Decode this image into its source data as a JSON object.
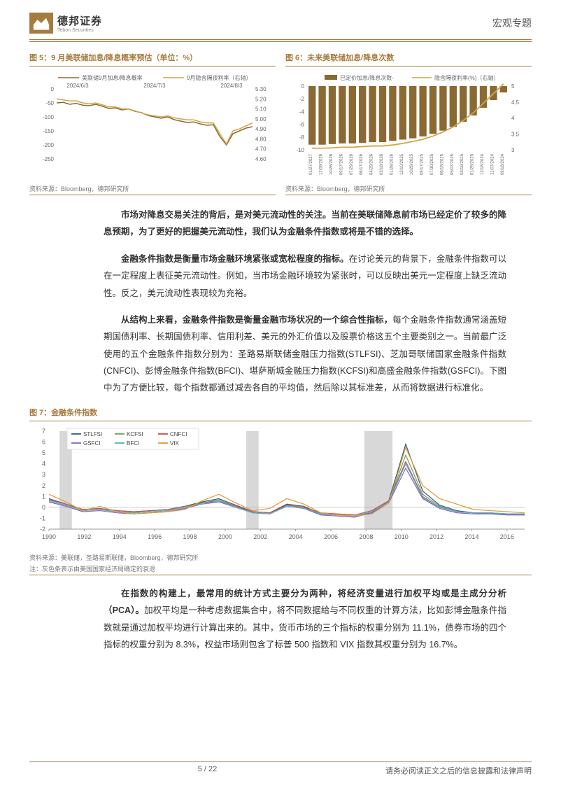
{
  "header": {
    "logo_cn": "德邦证券",
    "logo_en": "Tebon Securities",
    "right": "宏观专题"
  },
  "chart5": {
    "title": "图 5：9 月美联储加息/降息概率预估（单位：%）",
    "source": "资料来源：Bloomberg，德邦研究所",
    "legend1": "美联储9月加息/降息概率",
    "legend2": "9月隐含隔夜利率（右轴）",
    "xlabels": [
      "2024/6/3",
      "2024/7/3",
      "2024/8/3"
    ],
    "yleft": [
      0,
      -50,
      -100,
      -150,
      -200,
      -250
    ],
    "yright": [
      5.3,
      5.2,
      5.1,
      5.0,
      4.9,
      4.8,
      4.7,
      4.6
    ],
    "series1_color": "#8a6a32",
    "series2_color": "#d4a349",
    "line1": [
      -50,
      -48,
      -55,
      -52,
      -58,
      -60,
      -55,
      -62,
      -70,
      -68,
      -75,
      -72,
      -80,
      -85,
      -95,
      -100,
      -105,
      -100,
      -110,
      -115,
      -120,
      -118,
      -125,
      -130,
      -128,
      -170,
      -200,
      -160,
      -150,
      -140,
      -135
    ],
    "line2": [
      5.2,
      5.19,
      5.18,
      5.18,
      5.16,
      5.15,
      5.16,
      5.14,
      5.12,
      5.12,
      5.1,
      5.1,
      5.08,
      5.06,
      5.04,
      5.03,
      5.02,
      5.03,
      5.01,
      5.0,
      4.99,
      4.99,
      4.97,
      4.96,
      4.96,
      4.85,
      4.75,
      4.88,
      4.9,
      4.93,
      4.96
    ]
  },
  "chart6": {
    "title": "图 6：未来美联储加息/降息次数",
    "source": "资料来源：Bloomberg，德邦研究所",
    "legend1": "已定价加息/降息次数-",
    "legend2": "隐含隔夜利率(%)（右轴）",
    "xlabels": [
      "01/27/2027",
      "12/09/2026",
      "10/28/2026",
      "09/17/2026",
      "07/29/2026",
      "06/17/2026",
      "04/29/2026",
      "03/18/2026",
      "01/28/2026",
      "12/10/2025",
      "10/29/2025",
      "09/17/2025",
      "07/30/2025",
      "06/18/2025",
      "05/07/2025",
      "03/19/2025",
      "01/29/2025",
      "12/18/2024",
      "11/07/2024",
      "09/18/2024"
    ],
    "yleft": [
      0,
      -2,
      -4,
      -6,
      -8,
      -10
    ],
    "yright": [
      5,
      4.5,
      4,
      3.5,
      3
    ],
    "bar_color": "#8a6a32",
    "line_color": "#d4a349",
    "bars": [
      -9.2,
      -9.2,
      -9.1,
      -9.0,
      -9.0,
      -8.9,
      -8.8,
      -8.8,
      -8.6,
      -8.4,
      -8.2,
      -7.9,
      -7.5,
      -7.0,
      -6.4,
      -5.6,
      -4.6,
      -3.4,
      -2.2,
      -1.0
    ],
    "line": [
      3.05,
      3.05,
      3.06,
      3.08,
      3.08,
      3.1,
      3.12,
      3.12,
      3.15,
      3.2,
      3.26,
      3.33,
      3.43,
      3.56,
      3.72,
      3.92,
      4.16,
      4.46,
      4.76,
      5.07
    ]
  },
  "para1": "市场对降息交易关注的背后，是对美元流动性的关注。当前在美联储降息前市场已经定价了较多的降息预期，为了更好的把握美元流动性，我们认为金融条件指数或将是不错的选择。",
  "para2a": "金融条件指数是衡量市场金融环境紧张或宽松程度的指标。",
  "para2b": "在讨论美元的背景下，金融条件指数可以在一定程度上表征美元流动性。例如，当市场金融环境较为紧张时，可以反映出美元一定程度上缺乏流动性。反之，美元流动性表现较为充裕。",
  "para3a": "从结构上来看，金融条件指数是衡量金融市场状况的一个综合性指标，",
  "para3b": "每个金融条件指数通常涵盖短期国债利率、长期国债利率、信用利差、美元的外汇价值以及股票价格这五个主要类别之一。当前最广泛使用的五个金融条件指数分别为：圣路易斯联储金融压力指数(STLFSI)、芝加哥联储国家金融条件指数(CNFCI)、彭博金融条件指数(BFCI)、堪萨斯城金融压力指数(KCFSI)和高盛金融条件指数(GSFCI)。下图中为了方便比较，每个指数都通过减去各自的平均值，然后除以其标准差，从而将数据进行标准化。",
  "chart7": {
    "title": "图 7：金融条件指数",
    "source": "资料来源：美联储，圣路易斯联储，Bloomberg，德邦研究所",
    "note": "注：灰色条表示由美国国家经济局确定的衰退",
    "legend": [
      "STLFSI",
      "KCFSI",
      "CNFCI",
      "GSFCI",
      "BFCI",
      "VIX"
    ],
    "legend_colors": [
      "#2e5b8f",
      "#6aa35a",
      "#c94f4f",
      "#8860c7",
      "#4fb3bf",
      "#e09a2f"
    ],
    "ylabels": [
      7,
      6,
      5,
      4,
      3,
      2,
      1,
      0,
      -1,
      -2
    ],
    "xlabels": [
      "1990",
      "1992",
      "1994",
      "1996",
      "1998",
      "2000",
      "2002",
      "2004",
      "2006",
      "2008",
      "2010",
      "2012",
      "2014",
      "2016"
    ],
    "recessions": [
      [
        1990.6,
        1991.3
      ],
      [
        2001.2,
        2001.9
      ],
      [
        2007.9,
        2009.5
      ]
    ],
    "series_VIX": [
      1.2,
      0.5,
      -0.3,
      0.1,
      -0.4,
      -0.6,
      -0.5,
      -0.4,
      -0.2,
      0.6,
      1.2,
      0.4,
      -0.3,
      -0.1,
      0.8,
      0.3,
      -0.5,
      -0.7,
      -0.8,
      -0.6,
      0.4,
      5.5,
      2.0,
      0.8,
      0.3,
      -0.2,
      -0.3,
      -0.4,
      -0.5
    ],
    "series_STLFSI": [
      0.8,
      0.3,
      -0.2,
      -0.1,
      -0.3,
      -0.4,
      -0.3,
      -0.2,
      0.1,
      0.5,
      0.8,
      0.2,
      -0.4,
      -0.5,
      0.3,
      0.1,
      -0.6,
      -0.7,
      -0.8,
      -0.5,
      0.6,
      5.8,
      1.5,
      0.2,
      -0.3,
      -0.5,
      -0.6,
      -0.6,
      -0.7
    ],
    "series_KCFSI": [
      0.6,
      0.2,
      -0.3,
      -0.2,
      -0.4,
      -0.5,
      -0.4,
      -0.3,
      0.0,
      0.4,
      0.7,
      0.1,
      -0.5,
      -0.6,
      0.2,
      0.0,
      -0.6,
      -0.7,
      -0.8,
      -0.4,
      0.5,
      4.8,
      1.2,
      0.1,
      -0.4,
      -0.5,
      -0.6,
      -0.6,
      -0.7
    ],
    "series_CNFCI": [
      0.7,
      0.3,
      -0.2,
      -0.1,
      -0.3,
      -0.4,
      -0.3,
      -0.2,
      0.1,
      0.4,
      0.6,
      0.1,
      -0.4,
      -0.5,
      0.2,
      0.0,
      -0.5,
      -0.6,
      -0.7,
      -0.3,
      0.6,
      4.2,
      1.0,
      0.0,
      -0.4,
      -0.5,
      -0.5,
      -0.6,
      -0.6
    ],
    "series_GSFCI": [
      0.5,
      0.1,
      -0.4,
      -0.3,
      -0.5,
      -0.6,
      -0.5,
      -0.4,
      -0.1,
      0.3,
      0.5,
      0.0,
      -0.5,
      -0.6,
      0.1,
      -0.1,
      -0.7,
      -0.8,
      -0.9,
      -0.5,
      0.4,
      3.6,
      0.8,
      -0.1,
      -0.5,
      -0.6,
      -0.6,
      -0.7,
      -0.7
    ],
    "series_BFCI": [
      0.6,
      0.2,
      -0.3,
      -0.2,
      -0.4,
      -0.5,
      -0.4,
      -0.3,
      0.0,
      0.3,
      0.6,
      0.0,
      -0.5,
      -0.6,
      0.1,
      -0.1,
      -0.6,
      -0.7,
      -0.8,
      -0.4,
      0.5,
      4.0,
      0.9,
      0.0,
      -0.4,
      -0.5,
      -0.5,
      -0.6,
      -0.6
    ]
  },
  "para4a": "在指数的构建上，最常用的统计方式主要分为两种，将经济变量进行加权平均或是主成分分析（PCA）。",
  "para4b": "加权平均是一种考虑数据集合中，将不同数据给与不同权重的计算方法，比如彭博金融条件指数就是通过加权平均进行计算出来的。其中，货币市场的三个指标的权重分别为 11.1%，债券市场的四个指标的权重分别为 8.3%，权益市场则包含了标普 500 指数和 VIX 指数其权重分别为 16.7%。",
  "footer": {
    "page": "5 / 22",
    "disclaimer": "请务必阅读正文之后的信息披露和法律声明"
  }
}
